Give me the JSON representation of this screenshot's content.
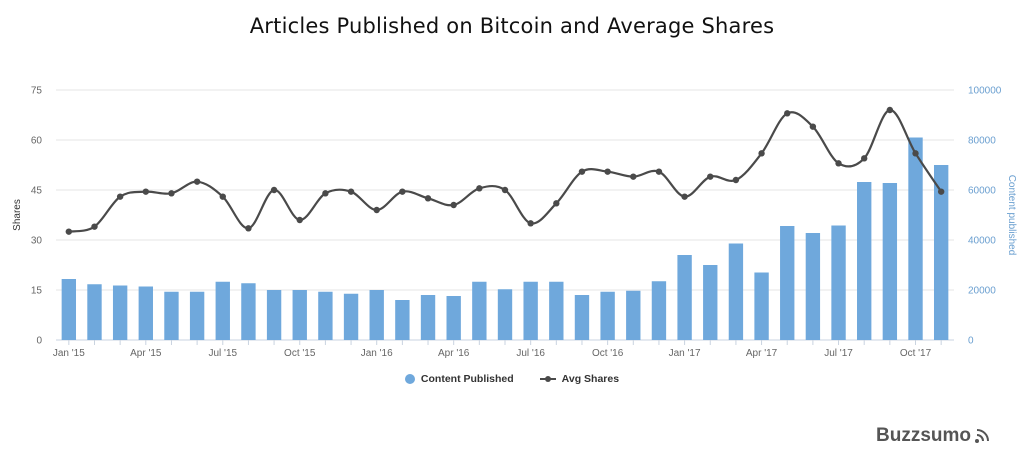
{
  "chart_data": {
    "type": "bar+line",
    "title": "Articles Published on Bitcoin and Average Shares",
    "ylabel_left": "Shares",
    "ylabel_right": "Content published",
    "ylim_left": [
      0,
      75
    ],
    "ylim_right": [
      0,
      100000
    ],
    "yticks_left": [
      "0",
      "15",
      "30",
      "45",
      "60",
      "75"
    ],
    "yticks_right": [
      "0",
      "20000",
      "40000",
      "60000",
      "80000",
      "100000"
    ],
    "x_months": [
      "Jan '15",
      "Feb '15",
      "Mar '15",
      "Apr '15",
      "May '15",
      "Jun '15",
      "Jul '15",
      "Aug '15",
      "Sep '15",
      "Oct '15",
      "Nov '15",
      "Dec '15",
      "Jan '16",
      "Feb '16",
      "Mar '16",
      "Apr '16",
      "May '16",
      "Jun '16",
      "Jul '16",
      "Aug '16",
      "Sep '16",
      "Oct '16",
      "Nov '16",
      "Dec '16",
      "Jan '17",
      "Feb '17",
      "Mar '17",
      "Apr '17",
      "May '17",
      "Jun '17",
      "Jul '17",
      "Aug '17",
      "Sep '17",
      "Oct '17",
      "Nov '17"
    ],
    "x_tick_labels": [
      "Jan '15",
      "Apr '15",
      "Jul '15",
      "Oct '15",
      "Jan '16",
      "Apr '16",
      "Jul '16",
      "Oct '16",
      "Jan '17",
      "Apr '17",
      "Jul '17",
      "Oct '17"
    ],
    "series": [
      {
        "name": "Content Published",
        "type": "bar",
        "axis": "right",
        "color": "#6fa8dc",
        "values": [
          24400,
          22300,
          21800,
          21400,
          19300,
          19300,
          23300,
          22700,
          20000,
          20000,
          19300,
          18500,
          20000,
          16000,
          18000,
          17600,
          23300,
          20300,
          23300,
          23300,
          18000,
          19300,
          19700,
          23500,
          34000,
          30000,
          38600,
          27000,
          45600,
          42800,
          45800,
          63200,
          62800,
          81000,
          70000
        ]
      },
      {
        "name": "Avg Shares",
        "type": "line",
        "axis": "left",
        "color": "#4a4a4a",
        "values": [
          32.5,
          34,
          43,
          44.5,
          44,
          47.5,
          43,
          33.5,
          45,
          36,
          44,
          44.5,
          39,
          44.5,
          42.5,
          40.5,
          45.5,
          45,
          35,
          41,
          50.5,
          50.5,
          49,
          50.5,
          43,
          49,
          48,
          56,
          68,
          64,
          53,
          54.5,
          69,
          56,
          44.5
        ]
      }
    ],
    "legend_position": "bottom-center",
    "grid": true
  },
  "legend": {
    "bars_label": "Content Published",
    "line_label": "Avg Shares"
  },
  "brand": {
    "name": "Buzzsumo",
    "icon": "wifi-signal-icon"
  }
}
